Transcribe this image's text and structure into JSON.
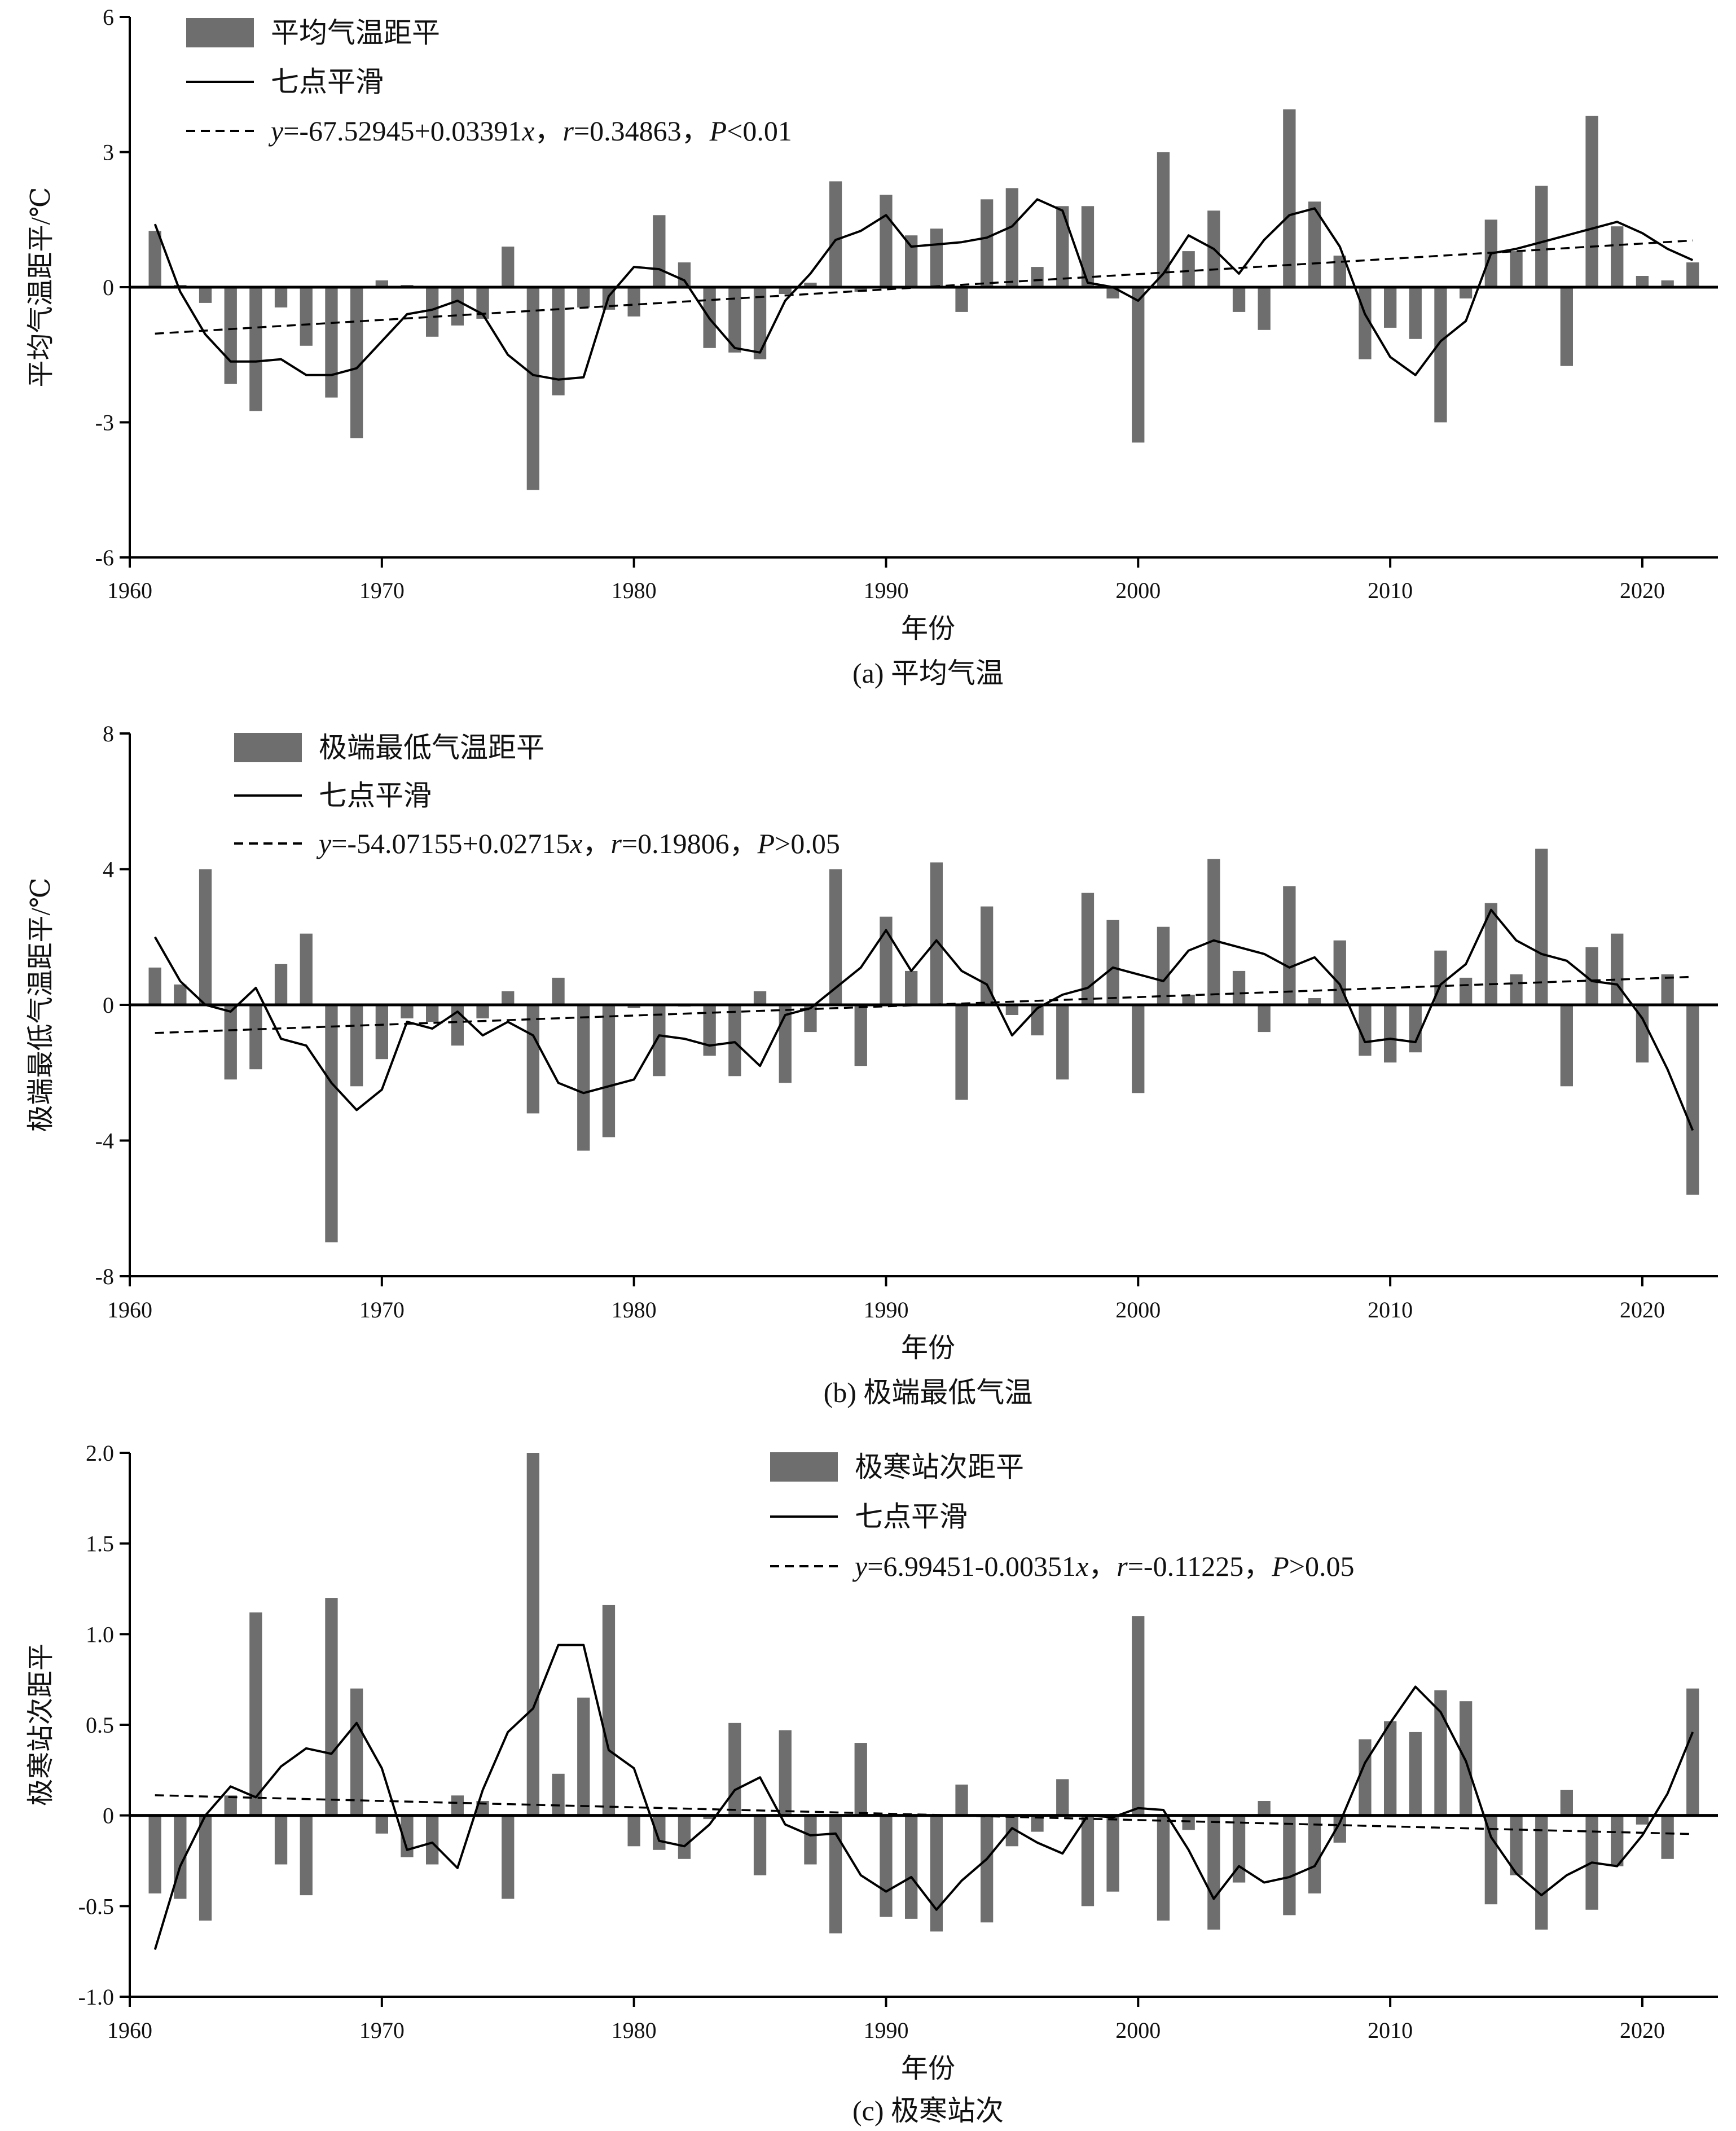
{
  "colors": {
    "bar": "#6e6e6e",
    "line": "#000000",
    "axis": "#000000"
  },
  "chart_data": [
    {
      "type": "bar",
      "caption": "(a) 平均气温",
      "xlabel": "年份",
      "ylabel": "平均气温距平/℃",
      "xlim": [
        1960,
        2023
      ],
      "ylim": [
        -6,
        6
      ],
      "xticks": [
        1960,
        1970,
        1980,
        1990,
        2000,
        2010,
        2020
      ],
      "yticks": [
        -6,
        -3,
        0,
        3,
        6
      ],
      "ytick_labels": [
        "-6",
        "-3",
        "0",
        "3",
        "6"
      ],
      "legend_position": "top-left",
      "x": [
        1961,
        1962,
        1963,
        1964,
        1965,
        1966,
        1967,
        1968,
        1969,
        1970,
        1971,
        1972,
        1973,
        1974,
        1975,
        1976,
        1977,
        1978,
        1979,
        1980,
        1981,
        1982,
        1983,
        1984,
        1985,
        1986,
        1987,
        1988,
        1989,
        1990,
        1991,
        1992,
        1993,
        1994,
        1995,
        1996,
        1997,
        1998,
        1999,
        2000,
        2001,
        2002,
        2003,
        2004,
        2005,
        2006,
        2007,
        2008,
        2009,
        2010,
        2011,
        2012,
        2013,
        2014,
        2015,
        2016,
        2017,
        2018,
        2019,
        2020,
        2021,
        2022
      ],
      "series": [
        {
          "name": "平均气温距平",
          "kind": "bar",
          "values": [
            1.25,
            0.05,
            -0.35,
            -2.15,
            -2.75,
            -0.45,
            -1.3,
            -2.45,
            -3.35,
            0.15,
            0.05,
            -1.1,
            -0.85,
            -0.7,
            0.9,
            -4.5,
            -2.4,
            -0.45,
            -0.5,
            -0.65,
            1.6,
            0.55,
            -1.35,
            -1.45,
            -1.6,
            -0.15,
            0.1,
            2.35,
            -0.1,
            2.05,
            1.15,
            1.3,
            -0.55,
            1.95,
            2.2,
            0.45,
            1.8,
            1.8,
            -0.25,
            -3.45,
            3.0,
            0.8,
            1.7,
            -0.55,
            -0.95,
            3.95,
            1.9,
            0.7,
            -1.6,
            -0.9,
            -1.15,
            -3.0,
            -0.25,
            1.5,
            0.8,
            2.25,
            -1.75,
            3.8,
            1.35,
            0.25,
            0.15,
            0.55
          ]
        },
        {
          "name": "七点平滑",
          "kind": "line",
          "values": [
            1.4,
            -0.1,
            -1.05,
            -1.65,
            -1.65,
            -1.6,
            -1.95,
            -1.95,
            -1.8,
            -1.2,
            -0.6,
            -0.5,
            -0.3,
            -0.6,
            -1.5,
            -1.95,
            -2.05,
            -2.0,
            -0.2,
            0.45,
            0.4,
            0.15,
            -0.7,
            -1.35,
            -1.45,
            -0.3,
            0.3,
            1.05,
            1.25,
            1.6,
            0.9,
            0.95,
            1.0,
            1.1,
            1.35,
            1.95,
            1.7,
            0.1,
            0.0,
            -0.3,
            0.3,
            1.15,
            0.85,
            0.3,
            1.05,
            1.6,
            1.75,
            0.9,
            -0.6,
            -1.55,
            -1.95,
            -1.2,
            -0.75,
            0.75,
            0.85,
            1.0,
            1.15,
            1.3,
            1.45,
            1.2,
            0.85,
            0.6
          ]
        },
        {
          "name": "y=-67.52945+0.03391x，r=0.34863，P<0.01",
          "kind": "trend",
          "intercept": -67.52945,
          "slope": 0.03391
        }
      ],
      "legend": {
        "bar": "平均气温距平",
        "line": "七点平滑",
        "trend": {
          "y": "y",
          "eq": "=-67.52945+0.03391",
          "x": "x",
          "sep1": "，",
          "r": "r",
          "rval": "=0.34863",
          "sep2": "，",
          "p": "P",
          "pval": "<0.01"
        }
      }
    },
    {
      "type": "bar",
      "caption": "(b) 极端最低气温",
      "xlabel": "年份",
      "ylabel": "极端最低气温距平/℃",
      "xlim": [
        1960,
        2023
      ],
      "ylim": [
        -8,
        8
      ],
      "xticks": [
        1960,
        1970,
        1980,
        1990,
        2000,
        2010,
        2020
      ],
      "yticks": [
        -8,
        -4,
        0,
        4,
        8
      ],
      "ytick_labels": [
        "-8",
        "-4",
        "0",
        "4",
        "8"
      ],
      "legend_position": "top-left",
      "x": [
        1961,
        1962,
        1963,
        1964,
        1965,
        1966,
        1967,
        1968,
        1969,
        1970,
        1971,
        1972,
        1973,
        1974,
        1975,
        1976,
        1977,
        1978,
        1979,
        1980,
        1981,
        1982,
        1983,
        1984,
        1985,
        1986,
        1987,
        1988,
        1989,
        1990,
        1991,
        1992,
        1993,
        1994,
        1995,
        1996,
        1997,
        1998,
        1999,
        2000,
        2001,
        2002,
        2003,
        2004,
        2005,
        2006,
        2007,
        2008,
        2009,
        2010,
        2011,
        2012,
        2013,
        2014,
        2015,
        2016,
        2017,
        2018,
        2019,
        2020,
        2021,
        2022
      ],
      "series": [
        {
          "name": "极端最低气温距平",
          "kind": "bar",
          "values": [
            1.1,
            0.6,
            4.0,
            -2.2,
            -1.9,
            1.2,
            2.1,
            -7.0,
            -2.4,
            -1.6,
            -0.4,
            -0.5,
            -1.2,
            -0.4,
            0.4,
            -3.2,
            0.8,
            -4.3,
            -3.9,
            -0.1,
            -2.1,
            -0.05,
            -1.5,
            -2.1,
            0.4,
            -2.3,
            -0.8,
            4.0,
            -1.8,
            2.6,
            1.0,
            4.2,
            -2.8,
            2.9,
            -0.3,
            -0.9,
            -2.2,
            3.3,
            2.5,
            -2.6,
            2.3,
            0.3,
            4.3,
            1.0,
            -0.8,
            3.5,
            0.2,
            1.9,
            -1.5,
            -1.7,
            -1.4,
            1.6,
            0.8,
            3.0,
            0.9,
            4.6,
            -2.4,
            1.7,
            2.1,
            -1.7,
            0.9,
            -5.6
          ]
        },
        {
          "name": "七点平滑",
          "kind": "line",
          "values": [
            2.0,
            0.7,
            0.0,
            -0.2,
            0.5,
            -1.0,
            -1.2,
            -2.3,
            -3.1,
            -2.5,
            -0.5,
            -0.7,
            -0.2,
            -0.9,
            -0.5,
            -0.9,
            -2.3,
            -2.6,
            -2.4,
            -2.2,
            -0.9,
            -1.0,
            -1.2,
            -1.1,
            -1.8,
            -0.3,
            -0.1,
            0.5,
            1.1,
            2.2,
            1.0,
            1.9,
            1.0,
            0.6,
            -0.9,
            -0.1,
            0.3,
            0.5,
            1.1,
            0.9,
            0.7,
            1.6,
            1.9,
            1.7,
            1.5,
            1.1,
            1.4,
            0.6,
            -1.1,
            -1.0,
            -1.1,
            0.6,
            1.2,
            2.8,
            1.9,
            1.5,
            1.3,
            0.7,
            0.6,
            -0.4,
            -1.9,
            -3.7
          ]
        },
        {
          "name": "y=-54.07155+0.02715x，r=0.19806，P>0.05",
          "kind": "trend",
          "intercept": -54.07155,
          "slope": 0.02715
        }
      ],
      "legend": {
        "bar": "极端最低气温距平",
        "line": "七点平滑",
        "trend": {
          "y": "y",
          "eq": "=-54.07155+0.02715",
          "x": "x",
          "sep1": "，",
          "r": "r",
          "rval": "=0.19806",
          "sep2": "，",
          "p": "P",
          "pval": ">0.05"
        }
      }
    },
    {
      "type": "bar",
      "caption": "(c) 极寒站次",
      "xlabel": "年份",
      "ylabel": "极寒站次距平",
      "xlim": [
        1960,
        2023
      ],
      "ylim": [
        -1.0,
        2.0
      ],
      "xticks": [
        1960,
        1970,
        1980,
        1990,
        2000,
        2010,
        2020
      ],
      "yticks": [
        -1.0,
        -0.5,
        0,
        0.5,
        1.0,
        1.5,
        2.0
      ],
      "ytick_labels": [
        "-1.0",
        "-0.5",
        "0",
        "0.5",
        "1.0",
        "1.5",
        "2.0"
      ],
      "legend_position": "top-center",
      "x": [
        1961,
        1962,
        1963,
        1964,
        1965,
        1966,
        1967,
        1968,
        1969,
        1970,
        1971,
        1972,
        1973,
        1974,
        1975,
        1976,
        1977,
        1978,
        1979,
        1980,
        1981,
        1982,
        1983,
        1984,
        1985,
        1986,
        1987,
        1988,
        1989,
        1990,
        1991,
        1992,
        1993,
        1994,
        1995,
        1996,
        1997,
        1998,
        1999,
        2000,
        2001,
        2002,
        2003,
        2004,
        2005,
        2006,
        2007,
        2008,
        2009,
        2010,
        2011,
        2012,
        2013,
        2014,
        2015,
        2016,
        2017,
        2018,
        2019,
        2020,
        2021,
        2022
      ],
      "series": [
        {
          "name": "极寒站次距平",
          "kind": "bar",
          "values": [
            -0.43,
            -0.46,
            -0.58,
            0.11,
            1.12,
            -0.27,
            -0.44,
            1.2,
            0.7,
            -0.1,
            -0.23,
            -0.27,
            0.11,
            0.08,
            -0.46,
            2.0,
            0.23,
            0.65,
            1.16,
            -0.17,
            -0.19,
            -0.24,
            -0.02,
            0.51,
            -0.33,
            0.47,
            -0.27,
            -0.65,
            0.4,
            -0.56,
            -0.57,
            -0.64,
            0.17,
            -0.59,
            -0.17,
            -0.09,
            0.2,
            -0.5,
            -0.42,
            1.1,
            -0.58,
            -0.08,
            -0.63,
            -0.37,
            0.08,
            -0.55,
            -0.43,
            -0.15,
            0.42,
            0.52,
            0.46,
            0.69,
            0.63,
            -0.49,
            -0.33,
            -0.63,
            0.14,
            -0.52,
            -0.28,
            -0.05,
            -0.24,
            0.7
          ]
        },
        {
          "name": "七点平滑",
          "kind": "line",
          "values": [
            -0.74,
            -0.28,
            0.0,
            0.16,
            0.1,
            0.27,
            0.37,
            0.34,
            0.51,
            0.26,
            -0.19,
            -0.15,
            -0.29,
            0.14,
            0.46,
            0.59,
            0.94,
            0.94,
            0.36,
            0.26,
            -0.14,
            -0.17,
            -0.05,
            0.14,
            0.21,
            -0.05,
            -0.11,
            -0.1,
            -0.33,
            -0.42,
            -0.34,
            -0.52,
            -0.36,
            -0.24,
            -0.07,
            -0.15,
            -0.21,
            0.0,
            -0.01,
            0.04,
            0.03,
            -0.19,
            -0.46,
            -0.28,
            -0.37,
            -0.34,
            -0.28,
            -0.04,
            0.29,
            0.51,
            0.71,
            0.57,
            0.3,
            -0.12,
            -0.32,
            -0.44,
            -0.33,
            -0.26,
            -0.28,
            -0.11,
            0.12,
            0.46
          ]
        },
        {
          "name": "y=6.99451-0.00351x，r=-0.11225，P>0.05",
          "kind": "trend",
          "intercept": 6.99451,
          "slope": -0.00351
        }
      ],
      "legend": {
        "bar": "极寒站次距平",
        "line": "七点平滑",
        "trend": {
          "y": "y",
          "eq": "=6.99451-0.00351",
          "x": "x",
          "sep1": "，",
          "r": "r",
          "rval": "=-0.11225",
          "sep2": "，",
          "p": "P",
          "pval": ">0.05"
        }
      }
    }
  ]
}
